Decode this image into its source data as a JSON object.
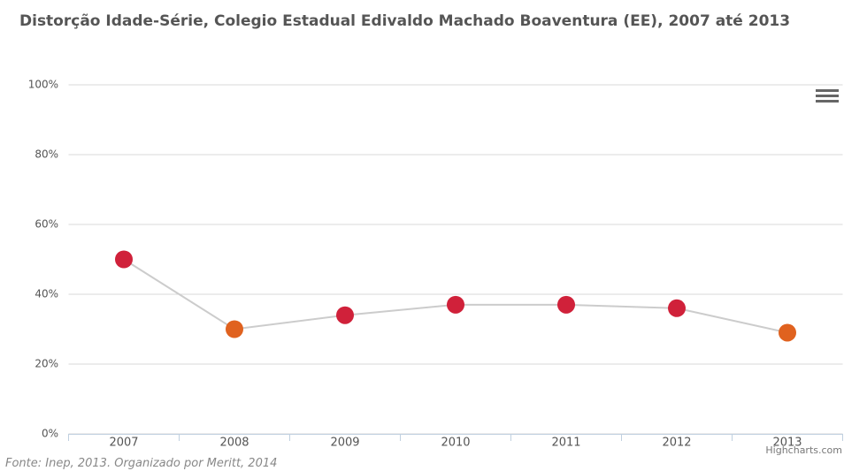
{
  "chart_data": {
    "type": "line",
    "title": "Distorção Idade-Série, Colegio Estadual Edivaldo Machado Boaventura (EE), 2007 até 2013",
    "categories": [
      "2007",
      "2008",
      "2009",
      "2010",
      "2011",
      "2012",
      "2013"
    ],
    "series": [
      {
        "color": "#cccccc",
        "point_colors": [
          "#d0213a",
          "#e0621f",
          "#d0213a",
          "#d0213a",
          "#d0213a",
          "#d0213a",
          "#e0621f"
        ],
        "values": [
          50,
          30,
          34,
          37,
          37,
          36,
          29
        ]
      }
    ],
    "ylim": [
      0,
      100
    ],
    "yticks": [
      {
        "value": 0,
        "label": "0%"
      },
      {
        "value": 20,
        "label": "20%"
      },
      {
        "value": 40,
        "label": "40%"
      },
      {
        "value": 60,
        "label": "60%"
      },
      {
        "value": 80,
        "label": "80%"
      },
      {
        "value": 100,
        "label": "100%"
      }
    ],
    "grid": true,
    "credits": "Highcharts.com",
    "source": "Fonte: Inep, 2013. Organizado por Meritt, 2014"
  }
}
